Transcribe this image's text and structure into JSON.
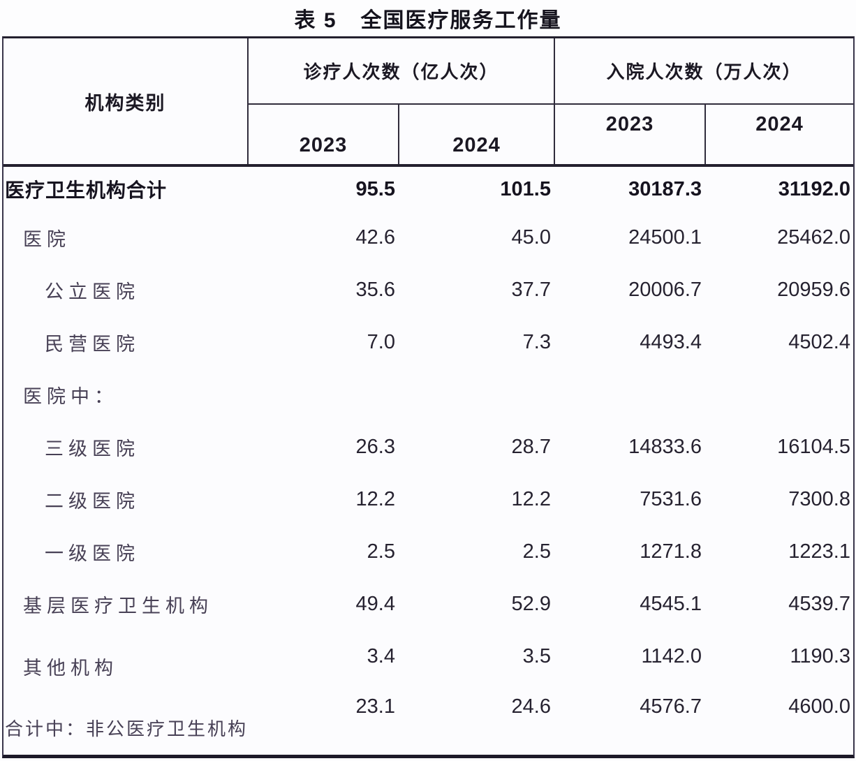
{
  "title": {
    "prefix": "表 5",
    "text": "全国医疗服务工作量"
  },
  "table": {
    "row_header": "机构类别",
    "col_groups": [
      {
        "label": "诊疗人次数（亿人次）",
        "years": [
          "2023",
          "2024"
        ]
      },
      {
        "label": "入院人次数（万人次）",
        "years": [
          "2023",
          "2024"
        ]
      }
    ],
    "rows": [
      {
        "label": "医疗卫生机构合计",
        "values": [
          "95.5",
          "101.5",
          "30187.3",
          "31192.0"
        ]
      },
      {
        "label": "医院",
        "values": [
          "42.6",
          "45.0",
          "24500.1",
          "25462.0"
        ]
      },
      {
        "label": "公立医院",
        "values": [
          "35.6",
          "37.7",
          "20006.7",
          "20959.6"
        ]
      },
      {
        "label": "民营医院",
        "values": [
          "7.0",
          "7.3",
          "4493.4",
          "4502.4"
        ]
      },
      {
        "label": "医院中：",
        "values": [
          "",
          "",
          "",
          ""
        ]
      },
      {
        "label": "三级医院",
        "values": [
          "26.3",
          "28.7",
          "14833.6",
          "16104.5"
        ]
      },
      {
        "label": "二级医院",
        "values": [
          "12.2",
          "12.2",
          "7531.6",
          "7300.8"
        ]
      },
      {
        "label": "一级医院",
        "values": [
          "2.5",
          "2.5",
          "1271.8",
          "1223.1"
        ]
      },
      {
        "label": "基层医疗卫生机构",
        "values": [
          "49.4",
          "52.9",
          "4545.1",
          "4539.7"
        ]
      },
      {
        "label": "其他机构",
        "values": [
          "3.4",
          "3.5",
          "1142.0",
          "1190.3"
        ]
      },
      {
        "label": "合计中：非公医疗卫生机构",
        "values": [
          "23.1",
          "24.6",
          "4576.7",
          "4600.0"
        ]
      }
    ]
  },
  "colors": {
    "border_dark": "#23202e",
    "label_text": "#474055",
    "number_text": "#262230",
    "title_text": "#15131d",
    "background": "#fcfcfe"
  },
  "chart_data": {
    "type": "table",
    "title": "表 5 全国医疗服务工作量",
    "columns": [
      "机构类别",
      "诊疗人次数（亿人次）2023",
      "诊疗人次数（亿人次）2024",
      "入院人次数（万人次）2023",
      "入院人次数（万人次）2024"
    ],
    "rows": [
      [
        "医疗卫生机构合计",
        95.5,
        101.5,
        30187.3,
        31192.0
      ],
      [
        "医院",
        42.6,
        45.0,
        24500.1,
        25462.0
      ],
      [
        "公立医院",
        35.6,
        37.7,
        20006.7,
        20959.6
      ],
      [
        "民营医院",
        7.0,
        7.3,
        4493.4,
        4502.4
      ],
      [
        "医院中：",
        null,
        null,
        null,
        null
      ],
      [
        "三级医院",
        26.3,
        28.7,
        14833.6,
        16104.5
      ],
      [
        "二级医院",
        12.2,
        12.2,
        7531.6,
        7300.8
      ],
      [
        "一级医院",
        2.5,
        2.5,
        1271.8,
        1223.1
      ],
      [
        "基层医疗卫生机构",
        49.4,
        52.9,
        4545.1,
        4539.7
      ],
      [
        "其他机构",
        3.4,
        3.5,
        1142.0,
        1190.3
      ],
      [
        "合计中：非公医疗卫生机构",
        23.1,
        24.6,
        4576.7,
        4600.0
      ]
    ]
  }
}
